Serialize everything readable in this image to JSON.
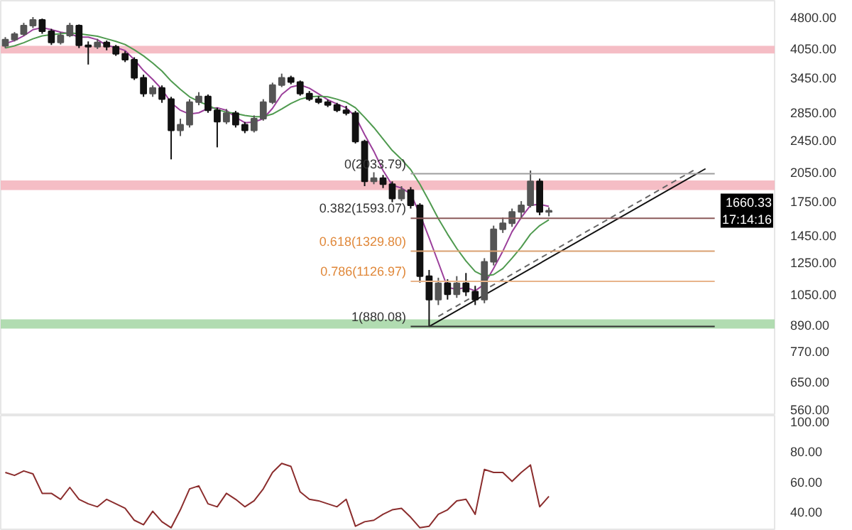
{
  "chart_data": [
    {
      "type": "candlestick",
      "log": true,
      "grid": false,
      "tick_labels": "y",
      "colors": [
        "#555555",
        "#555555",
        "#555555",
        "#555555",
        "#111111",
        "#111111",
        "#555555",
        "#555555",
        "#111111",
        "#111111",
        "#555555",
        "#111111",
        "#111111",
        "#111111",
        "#111111",
        "#111111",
        "#555555",
        "#111111",
        "#111111",
        "#555555",
        "#555555",
        "#555555",
        "#111111",
        "#111111",
        "#555555",
        "#111111",
        "#111111",
        "#555555",
        "#555555",
        "#555555",
        "#555555",
        "#111111",
        "#111111",
        "#111111",
        "#111111",
        "#111111",
        "#111111",
        "#111111",
        "#111111",
        "#111111",
        "#555555",
        "#111111",
        "#111111",
        "#555555",
        "#111111",
        "#111111",
        "#111111",
        "#555555",
        "#111111",
        "#555555",
        "#111111",
        "#111111",
        "#555555",
        "#555555",
        "#555555",
        "#555555",
        "#555555",
        "#555555",
        "#111111",
        "#555555",
        null,
        null,
        null,
        null,
        null,
        null,
        null,
        null,
        null,
        null,
        null,
        null,
        null,
        null,
        null,
        null,
        null,
        null,
        null,
        null,
        null,
        null,
        null,
        null
      ],
      "categories": [
        null,
        null,
        null,
        null,
        null,
        null,
        null,
        null,
        null,
        null,
        null,
        null,
        null,
        null,
        null,
        null,
        null,
        null,
        null,
        null,
        null,
        null,
        null,
        null,
        null,
        null,
        null,
        null,
        null,
        null,
        null,
        null,
        null,
        null,
        null,
        null,
        null,
        null,
        null,
        null,
        null,
        null,
        null,
        null,
        null,
        null,
        null,
        null,
        null,
        null,
        null,
        null,
        null,
        null,
        null,
        null,
        null,
        null,
        null,
        null,
        null,
        null,
        null,
        null,
        null,
        null,
        null,
        null,
        null,
        null,
        null,
        null,
        null,
        null,
        null,
        null,
        null,
        null,
        null,
        null,
        null,
        null,
        null,
        null
      ],
      "ohlc": [
        [
          4100,
          4300,
          4050,
          4240
        ],
        [
          4240,
          4420,
          4200,
          4370
        ],
        [
          4370,
          4650,
          4330,
          4580
        ],
        [
          4580,
          4800,
          4520,
          4725
        ],
        [
          4725,
          4760,
          4380,
          4440
        ],
        [
          4440,
          4500,
          4120,
          4175
        ],
        [
          4175,
          4420,
          4130,
          4340
        ],
        [
          4340,
          4650,
          4300,
          4580
        ],
        [
          4580,
          4610,
          4050,
          4110
        ],
        [
          4110,
          4200,
          3700,
          4080
        ],
        [
          4080,
          4260,
          4030,
          4175
        ],
        [
          4175,
          4220,
          4000,
          4080
        ],
        [
          4080,
          4120,
          3880,
          3925
        ],
        [
          3925,
          3980,
          3750,
          3800
        ],
        [
          3800,
          3850,
          3400,
          3440
        ],
        [
          3440,
          3500,
          3100,
          3155
        ],
        [
          3155,
          3300,
          3100,
          3255
        ],
        [
          3255,
          3300,
          3000,
          3060
        ],
        [
          3060,
          3100,
          2200,
          2580
        ],
        [
          2580,
          2750,
          2500,
          2660
        ],
        [
          2660,
          3060,
          2620,
          3010
        ],
        [
          3010,
          3180,
          2960,
          3105
        ],
        [
          3105,
          3140,
          2840,
          2880
        ],
        [
          2880,
          2920,
          2350,
          2705
        ],
        [
          2705,
          2900,
          2670,
          2835
        ],
        [
          2835,
          2870,
          2620,
          2660
        ],
        [
          2660,
          2700,
          2540,
          2580
        ],
        [
          2580,
          2800,
          2550,
          2750
        ],
        [
          2750,
          3060,
          2720,
          3010
        ],
        [
          3010,
          3350,
          2980,
          3305
        ],
        [
          3305,
          3520,
          3270,
          3440
        ],
        [
          3440,
          3480,
          3320,
          3360
        ],
        [
          3360,
          3390,
          3120,
          3155
        ],
        [
          3155,
          3200,
          3030,
          3060
        ],
        [
          3060,
          3110,
          2980,
          3010
        ],
        [
          3010,
          3050,
          2930,
          2965
        ],
        [
          2965,
          3000,
          2850,
          2880
        ],
        [
          2880,
          2950,
          2800,
          2835
        ],
        [
          2835,
          2870,
          2400,
          2425
        ],
        [
          2425,
          2450,
          1900,
          1950
        ],
        [
          1950,
          2050,
          1920,
          1985
        ],
        [
          1985,
          2020,
          1880,
          1920
        ],
        [
          1920,
          1950,
          1740,
          1775
        ],
        [
          1775,
          1900,
          1750,
          1860
        ],
        [
          1860,
          1890,
          1680,
          1710
        ],
        [
          1710,
          1730,
          1120,
          1160
        ],
        [
          1160,
          1200,
          880.08,
          1020
        ],
        [
          1020,
          1150,
          990,
          1115
        ],
        [
          1115,
          1140,
          1020,
          1050
        ],
        [
          1050,
          1160,
          1030,
          1115
        ],
        [
          1115,
          1180,
          1040,
          1065
        ],
        [
          1065,
          1100,
          990,
          1020
        ],
        [
          1020,
          1280,
          1000,
          1255
        ],
        [
          1255,
          1530,
          1230,
          1500
        ],
        [
          1500,
          1600,
          1470,
          1550
        ],
        [
          1550,
          1680,
          1520,
          1650
        ],
        [
          1650,
          1750,
          1600,
          1710
        ],
        [
          1710,
          2070,
          1690,
          1950
        ],
        [
          1950,
          1980,
          1620,
          1650
        ],
        [
          1650,
          1690,
          1610,
          1660.33
        ],
        null,
        null,
        null,
        null,
        null,
        null,
        null,
        null,
        null,
        null,
        null,
        null,
        null,
        null,
        null,
        null,
        null,
        null,
        null,
        null,
        null,
        null,
        null,
        null
      ],
      "series": [
        {
          "type": "line",
          "color": "#9b3f9b",
          "values": [
            4150,
            4220,
            4330,
            4480,
            4530,
            4480,
            4420,
            4380,
            4300,
            4300,
            4240,
            4110,
            4065,
            3995,
            3800,
            3580,
            3410,
            3230,
            3000,
            2880,
            2820,
            2840,
            2910,
            2920,
            2880,
            2770,
            2690,
            2700,
            2750,
            2910,
            3140,
            3270,
            3310,
            3250,
            3150,
            3050,
            2980,
            2920,
            2780,
            2520,
            2300,
            2070,
            1910,
            1880,
            1820,
            1630,
            1430,
            1250,
            1090,
            1080,
            1090,
            1070,
            1110,
            1210,
            1330,
            1480,
            1600,
            1710,
            1720,
            1700,
            null,
            null,
            null,
            null,
            null,
            null,
            null,
            null,
            null,
            null,
            null,
            null,
            null,
            null,
            null,
            null,
            null,
            null,
            null,
            null,
            null,
            null,
            null,
            null
          ]
        },
        {
          "type": "line",
          "color": "#4f9a4f",
          "values": [
            4050,
            4100,
            4170,
            4260,
            4330,
            4360,
            4380,
            4400,
            4380,
            4350,
            4320,
            4260,
            4200,
            4130,
            4010,
            3880,
            3730,
            3570,
            3380,
            3230,
            3100,
            3020,
            2960,
            2890,
            2850,
            2830,
            2800,
            2780,
            2780,
            2820,
            2900,
            2990,
            3060,
            3100,
            3110,
            3100,
            3060,
            3010,
            2920,
            2770,
            2620,
            2460,
            2310,
            2200,
            2080,
            1920,
            1750,
            1590,
            1460,
            1350,
            1260,
            1190,
            1160,
            1170,
            1210,
            1280,
            1360,
            1460,
            1530,
            1580,
            null,
            null,
            null,
            null,
            null,
            null,
            null,
            null,
            null,
            null,
            null,
            null,
            null,
            null,
            null,
            null,
            null,
            null,
            null,
            null,
            null,
            null,
            null,
            null
          ]
        },
        {
          "type": "line",
          "color": "#111111",
          "values": [
            null,
            null,
            null,
            null,
            null,
            null,
            null,
            null,
            null,
            null,
            null,
            null,
            null,
            null,
            null,
            null,
            null,
            null,
            null,
            null,
            null,
            null,
            null,
            null,
            null,
            null,
            null,
            null,
            null,
            null,
            null,
            null,
            null,
            null,
            null,
            null,
            null,
            null,
            null,
            null,
            null,
            null,
            null,
            null,
            null,
            null,
            880.08,
            null,
            null,
            null,
            null,
            null,
            null,
            null,
            null,
            null,
            null,
            null,
            null,
            null,
            null,
            null,
            null,
            null,
            null,
            null,
            null,
            null,
            null,
            null,
            null,
            null,
            null,
            null,
            null,
            null,
            2090,
            null,
            null,
            null,
            null,
            null,
            null,
            null
          ]
        },
        {
          "type": "line",
          "color": "#666666",
          "line_style": "dashed",
          "values": [
            null,
            null,
            null,
            null,
            null,
            null,
            null,
            null,
            null,
            null,
            null,
            null,
            null,
            null,
            null,
            null,
            null,
            null,
            null,
            null,
            null,
            null,
            null,
            null,
            null,
            null,
            null,
            null,
            null,
            null,
            null,
            null,
            null,
            null,
            null,
            null,
            null,
            null,
            null,
            null,
            null,
            null,
            null,
            null,
            null,
            null,
            null,
            930,
            null,
            null,
            null,
            null,
            null,
            null,
            null,
            null,
            null,
            null,
            null,
            null,
            null,
            null,
            null,
            null,
            null,
            null,
            null,
            null,
            null,
            null,
            null,
            null,
            null,
            null,
            null,
            2090,
            null,
            null,
            null,
            null,
            null,
            null,
            null,
            null
          ]
        }
      ],
      "ref_lines": [
        {
          "axis": "y",
          "value": 2033.79,
          "label": "0(2033.79)",
          "color": "#9e9e9e"
        },
        {
          "axis": "y",
          "value": 1593.07,
          "label": "0.382(1593.07)",
          "color": "#8b5a5a"
        },
        {
          "axis": "y",
          "value": 1329.8,
          "label": "0.618(1329.80)",
          "color": "#d9a070"
        },
        {
          "axis": "y",
          "value": 1126.97,
          "label": "0.786(1126.97)",
          "color": "#e8b48a"
        },
        {
          "axis": "y",
          "value": 880.08,
          "label": "1(880.08)",
          "color": "#333333"
        }
      ],
      "bands": [
        {
          "axis": "y",
          "from": 3930,
          "to": 4100,
          "color": "#f4b6bf"
        },
        {
          "axis": "y",
          "from": 1860,
          "to": 1960,
          "color": "#f4b6bf"
        },
        {
          "axis": "y",
          "from": 870,
          "to": 915,
          "color": "#a8d8a8"
        }
      ],
      "annotations": [
        {
          "text": "1660.33\n17:14:16",
          "y": 1660.33
        }
      ],
      "ylim": [
        540,
        5250
      ],
      "yticks": [
        {
          "value": 560,
          "label": "560.00"
        },
        {
          "value": 650,
          "label": "650.00"
        },
        {
          "value": 770,
          "label": "770.00"
        },
        {
          "value": 890,
          "label": "890.00"
        },
        {
          "value": 1050,
          "label": "1050.00"
        },
        {
          "value": 1250,
          "label": "1250.00"
        },
        {
          "value": 1450,
          "label": "1450.00"
        },
        {
          "value": 1750,
          "label": "1750.00"
        },
        {
          "value": 2050,
          "label": "2050.00"
        },
        {
          "value": 2450,
          "label": "2450.00"
        },
        {
          "value": 2850,
          "label": "2850.00"
        },
        {
          "value": 3450,
          "label": "3450.00"
        },
        {
          "value": 4050,
          "label": "4050.00"
        },
        {
          "value": 4800,
          "label": "4800.00"
        }
      ]
    },
    {
      "type": "line",
      "grid": false,
      "tick_labels": "y",
      "color": "#8b2d2d",
      "categories": [
        null,
        null,
        null,
        null,
        null,
        null,
        null,
        null,
        null,
        null,
        null,
        null,
        null,
        null,
        null,
        null,
        null,
        null,
        null,
        null,
        null,
        null,
        null,
        null,
        null,
        null,
        null,
        null,
        null,
        null,
        null,
        null,
        null,
        null,
        null,
        null,
        null,
        null,
        null,
        null,
        null,
        null,
        null,
        null,
        null,
        null,
        null,
        null,
        null,
        null,
        null,
        null,
        null,
        null,
        null,
        null,
        null,
        null,
        null,
        null,
        null,
        null,
        null,
        null,
        null,
        null,
        null,
        null,
        null,
        null,
        null,
        null,
        null,
        null,
        null,
        null,
        null,
        null,
        null,
        null,
        null,
        null,
        null,
        null
      ],
      "values": [
        66,
        64,
        67,
        65,
        52,
        52,
        48,
        56,
        48,
        45,
        43,
        48,
        45,
        42,
        34,
        31,
        40,
        33,
        29,
        41,
        55,
        57,
        45,
        43,
        52,
        48,
        43,
        47,
        55,
        66,
        72,
        70,
        53,
        48,
        47,
        45,
        43,
        48,
        30,
        33,
        34,
        38,
        41,
        42,
        36,
        29,
        30,
        38,
        41,
        47,
        48,
        38,
        68,
        66,
        66,
        60,
        66,
        71,
        43,
        50,
        null,
        null,
        null,
        null,
        null,
        null,
        null,
        null,
        null,
        null,
        null,
        null,
        null,
        null,
        null,
        null,
        null,
        null,
        null,
        null,
        null,
        null,
        null,
        null
      ],
      "ylim": [
        27,
        104
      ],
      "yticks": [
        {
          "value": 40,
          "label": "40.00"
        },
        {
          "value": 60,
          "label": "60.00"
        },
        {
          "value": 80,
          "label": "80.00"
        },
        {
          "value": 100,
          "label": "100.00"
        }
      ]
    }
  ]
}
